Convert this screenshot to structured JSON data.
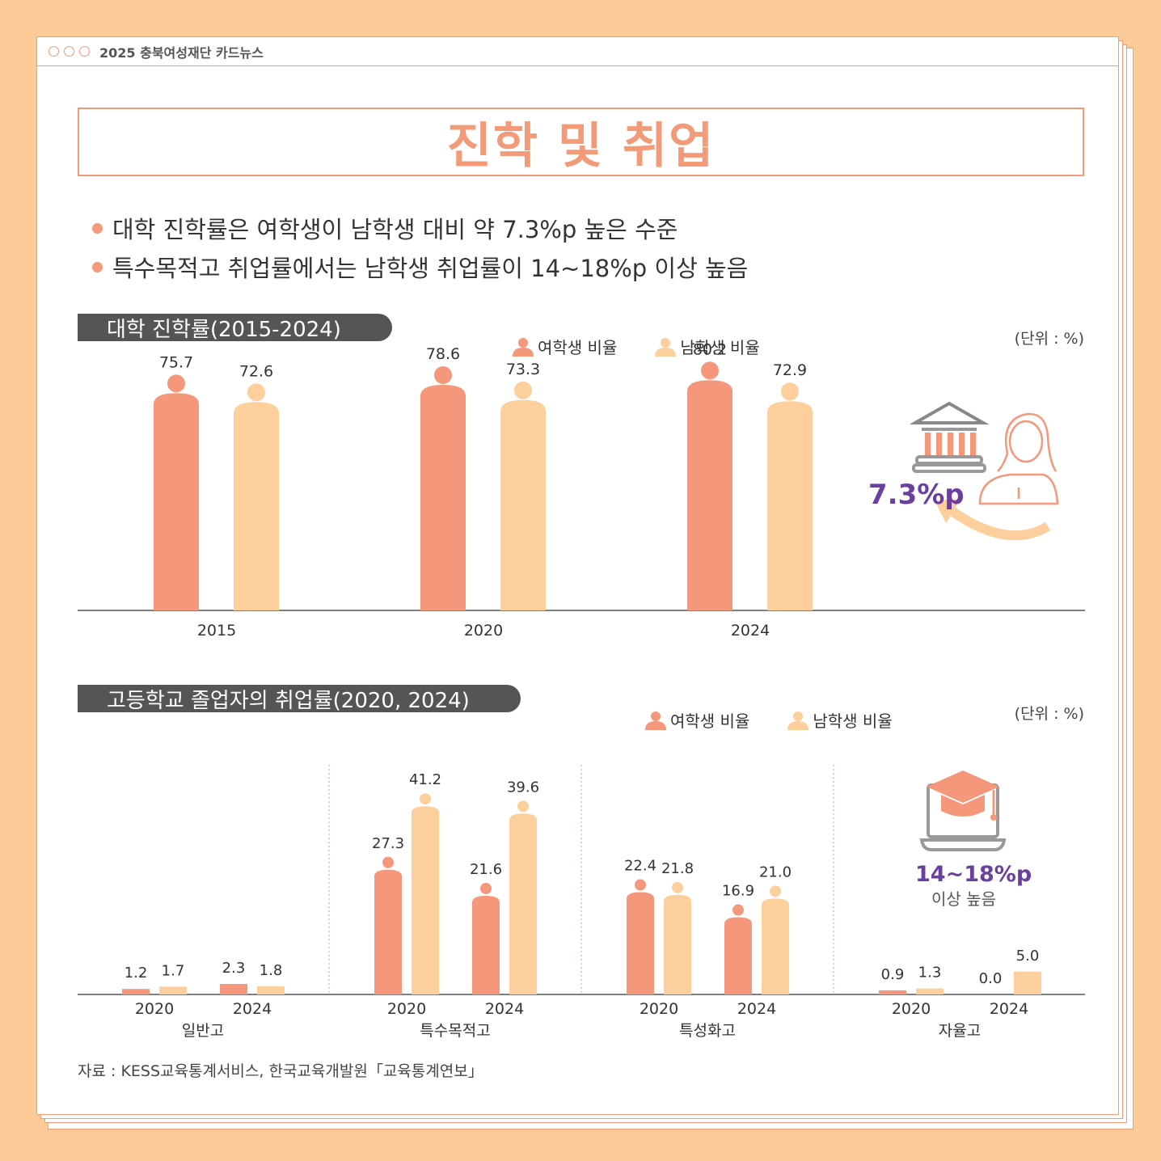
{
  "header": {
    "window_title": "2025 충북여성재단 카드뉴스",
    "headline": "진학 및 취업"
  },
  "bullets": [
    "대학 진학률은 여학생이 남학생 대비 약 7.3%p 높은 수준",
    "특수목적고 취업률에서는 남학생 취업률이 14~18%p 이상 높음"
  ],
  "colors": {
    "female": "#F4977A",
    "male": "#FDCF9C",
    "accent": "#F39A78",
    "purple": "#6B3FA0"
  },
  "section1": {
    "title": "대학 진학률(2015-2024)",
    "unit": "(단위 : %)",
    "legend_female": "여학생 비율",
    "legend_male": "남학생 비율",
    "callout": "7.3%p"
  },
  "section2": {
    "title": "고등학교 졸업자의 취업률(2020, 2024)",
    "unit": "(단위 : %)",
    "legend_female": "여학생 비율",
    "legend_male": "남학생 비율",
    "callout_value": "14~18%p",
    "callout_text": "이상 높음"
  },
  "source": "자료 : KESS교육통계서비스, 한국교육개발원「교육통계연보」",
  "chart_data": [
    {
      "type": "bar",
      "title": "대학 진학률(2015-2024)",
      "categories": [
        "2015",
        "2020",
        "2024"
      ],
      "series": [
        {
          "name": "여학생 비율",
          "values": [
            75.7,
            78.6,
            80.2
          ]
        },
        {
          "name": "남학생 비율",
          "values": [
            72.6,
            73.3,
            72.9
          ]
        }
      ],
      "ylim": [
        0,
        90
      ]
    },
    {
      "type": "bar",
      "title": "고등학교 졸업자의 취업률(2020, 2024)",
      "groups": [
        {
          "name": "일반고",
          "years": [
            "2020",
            "2024"
          ],
          "female": [
            1.2,
            2.3
          ],
          "male": [
            1.7,
            1.8
          ]
        },
        {
          "name": "특수목적고",
          "years": [
            "2020",
            "2024"
          ],
          "female": [
            27.3,
            21.6
          ],
          "male": [
            41.2,
            39.6
          ]
        },
        {
          "name": "특성화고",
          "years": [
            "2020",
            "2024"
          ],
          "female": [
            22.4,
            16.9
          ],
          "male": [
            21.8,
            21.0
          ]
        },
        {
          "name": "자율고",
          "years": [
            "2020",
            "2024"
          ],
          "female": [
            0.9,
            0.0
          ],
          "male": [
            1.3,
            5.0
          ]
        }
      ],
      "ylim": [
        0,
        50
      ]
    }
  ]
}
